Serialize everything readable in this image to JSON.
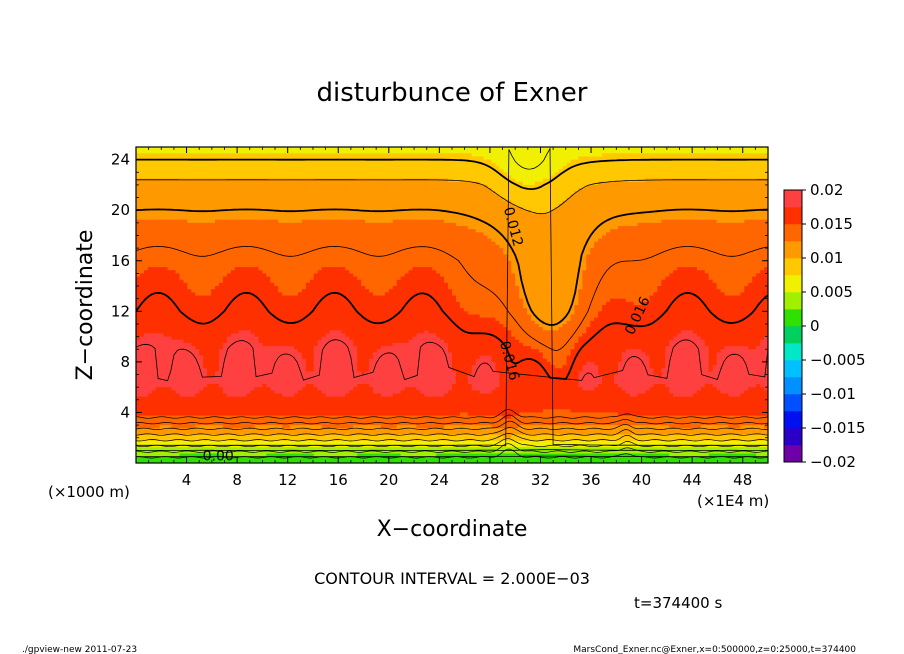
{
  "chart_data": {
    "type": "heatmap",
    "title": "disturbunce of Exner",
    "xlabel": "X−coordinate",
    "ylabel": "Z−coordinate",
    "x_unit": "(×1000 m)",
    "x_multiplier_label": "(×1E4 m)",
    "xlim": [
      0,
      50
    ],
    "ylim": [
      0,
      25
    ],
    "x_ticks": [
      4,
      8,
      12,
      16,
      20,
      24,
      28,
      32,
      36,
      40,
      44,
      48
    ],
    "y_ticks": [
      4,
      8,
      12,
      16,
      20,
      24
    ],
    "contour_interval_label": "CONTOUR INTERVAL = 2.000E−03",
    "time_label": "t=374400 s",
    "colorbar": {
      "levels": [
        -0.02,
        -0.0175,
        -0.015,
        -0.0125,
        -0.01,
        -0.0075,
        -0.005,
        -0.0025,
        0,
        0.0025,
        0.005,
        0.0075,
        0.01,
        0.0125,
        0.015,
        0.0175,
        0.02
      ],
      "colors": [
        "#6f00a8",
        "#2a00c8",
        "#0010f0",
        "#0050ff",
        "#0090ff",
        "#00c0ff",
        "#00e8c8",
        "#00d060",
        "#30e000",
        "#a0f000",
        "#f0f000",
        "#ffc800",
        "#ff9900",
        "#ff6600",
        "#ff3000",
        "#ff4040",
        "#ff8080"
      ],
      "tick_values": [
        0.02,
        0.015,
        0.01,
        0.005,
        0,
        -0.005,
        -0.01,
        -0.015,
        -0.02
      ],
      "tick_labels": [
        "0.02",
        "0.015",
        "0.01",
        "0.005",
        "0",
        "−0.005",
        "−0.01",
        "−0.015",
        "−0.02"
      ]
    },
    "field_profile": [
      {
        "z": 0.0,
        "value": 0.0
      },
      {
        "z": 1.0,
        "value": 0.004
      },
      {
        "z": 2.0,
        "value": 0.009
      },
      {
        "z": 3.0,
        "value": 0.013
      },
      {
        "z": 4.2,
        "value": 0.016
      },
      {
        "z": 6.5,
        "value": 0.0185
      },
      {
        "z": 9.0,
        "value": 0.0178
      },
      {
        "z": 12.0,
        "value": 0.016
      },
      {
        "z": 16.0,
        "value": 0.0145
      },
      {
        "z": 20.0,
        "value": 0.012
      },
      {
        "z": 22.0,
        "value": 0.0105
      },
      {
        "z": 24.0,
        "value": 0.008
      },
      {
        "z": 25.0,
        "value": 0.007
      }
    ],
    "contour_labels": [
      {
        "text": "0.012",
        "x": 29.5,
        "z": 18.6
      },
      {
        "text": "0.016",
        "x": 29.2,
        "z": 8.0
      },
      {
        "text": "0.016",
        "x": 40.0,
        "z": 11.5
      },
      {
        "text": "0.00",
        "x": 6.5,
        "z": 0.2
      }
    ]
  },
  "footer": {
    "left": "./gpview-new   2011-07-23",
    "right": "MarsCond_Exner.nc@Exner,x=0:500000,z=0:25000,t=374400"
  }
}
